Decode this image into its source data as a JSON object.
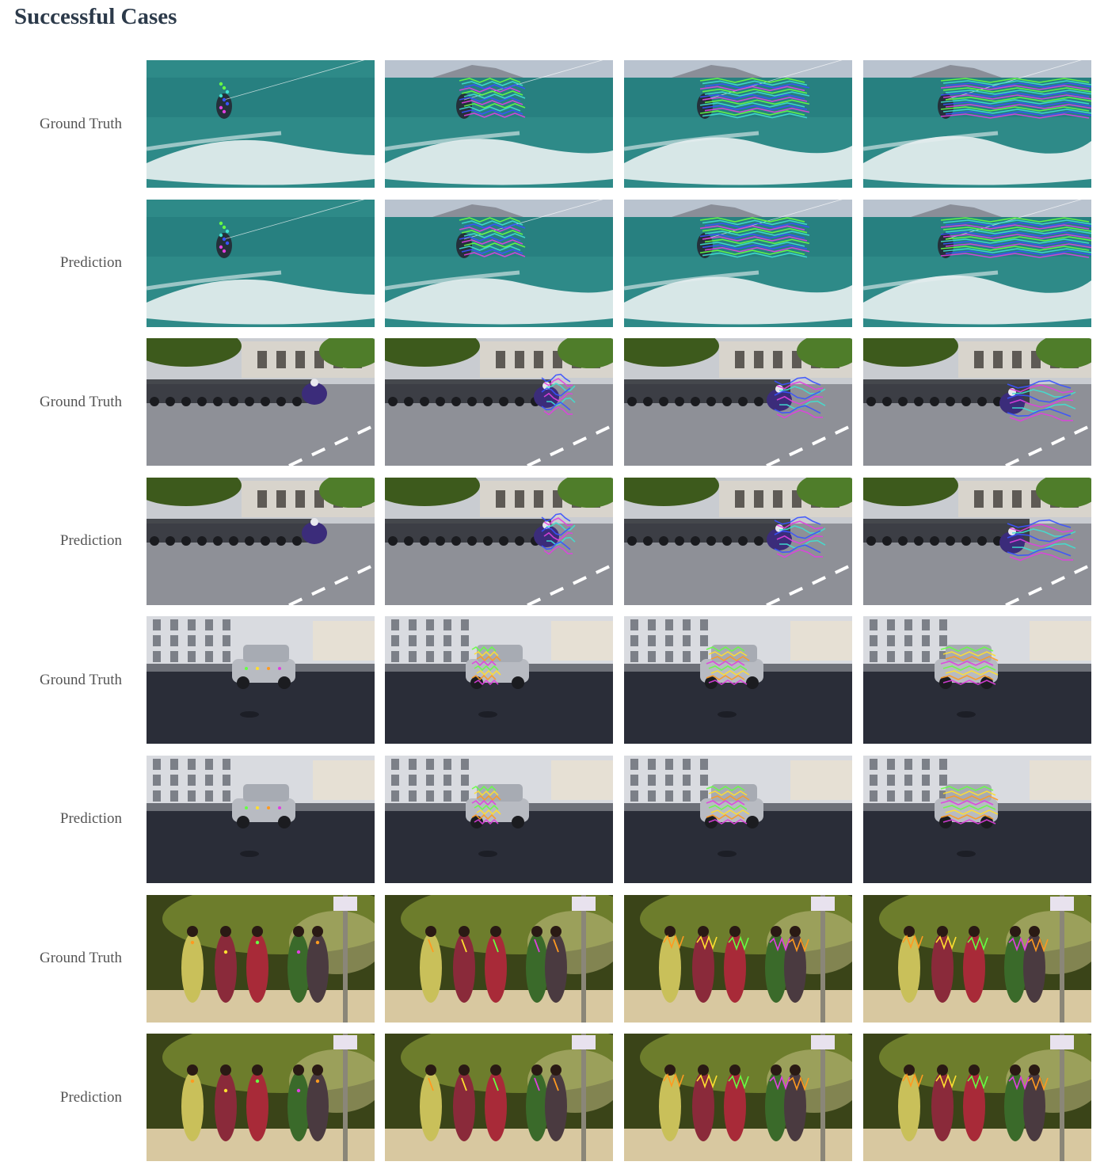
{
  "section_title": "Successful Cases",
  "rows": [
    {
      "label": "Ground Truth",
      "scene": "sea",
      "frames": [
        "kitesurfer-gt-frame-1",
        "kitesurfer-gt-frame-2",
        "kitesurfer-gt-frame-3",
        "kitesurfer-gt-frame-4"
      ]
    },
    {
      "label": "Prediction",
      "scene": "sea",
      "frames": [
        "kitesurfer-pred-frame-1",
        "kitesurfer-pred-frame-2",
        "kitesurfer-pred-frame-3",
        "kitesurfer-pred-frame-4"
      ]
    },
    {
      "label": "Ground Truth",
      "scene": "moto",
      "frames": [
        "motorcycle-gt-frame-1",
        "motorcycle-gt-frame-2",
        "motorcycle-gt-frame-3",
        "motorcycle-gt-frame-4"
      ]
    },
    {
      "label": "Prediction",
      "scene": "moto",
      "frames": [
        "motorcycle-pred-frame-1",
        "motorcycle-pred-frame-2",
        "motorcycle-pred-frame-3",
        "motorcycle-pred-frame-4"
      ]
    },
    {
      "label": "Ground Truth",
      "scene": "car",
      "frames": [
        "car-gt-frame-1",
        "car-gt-frame-2",
        "car-gt-frame-3",
        "car-gt-frame-4"
      ]
    },
    {
      "label": "Prediction",
      "scene": "car",
      "frames": [
        "car-pred-frame-1",
        "car-pred-frame-2",
        "car-pred-frame-3",
        "car-pred-frame-4"
      ]
    },
    {
      "label": "Ground Truth",
      "scene": "crowd",
      "frames": [
        "crowd-gt-frame-1",
        "crowd-gt-frame-2",
        "crowd-gt-frame-3",
        "crowd-gt-frame-4"
      ]
    },
    {
      "label": "Prediction",
      "scene": "crowd",
      "frames": [
        "crowd-pred-frame-1",
        "crowd-pred-frame-2",
        "crowd-pred-frame-3",
        "crowd-pred-frame-4"
      ]
    }
  ],
  "colors": {
    "title": "#2c3a4a",
    "label": "#555555",
    "sea": "#2e8a88",
    "sky": "#b9c3cf",
    "foam": "#f4f7f8",
    "road": "#8e9097",
    "asphalt": "#2a2d38",
    "foliage": "#3d5a1c",
    "track_green": "#66ff44",
    "track_blue": "#3a52ff",
    "track_magenta": "#e040e0",
    "track_cyan": "#40e0d0",
    "track_orange": "#ff9a20",
    "track_yellow": "#ffe030"
  }
}
